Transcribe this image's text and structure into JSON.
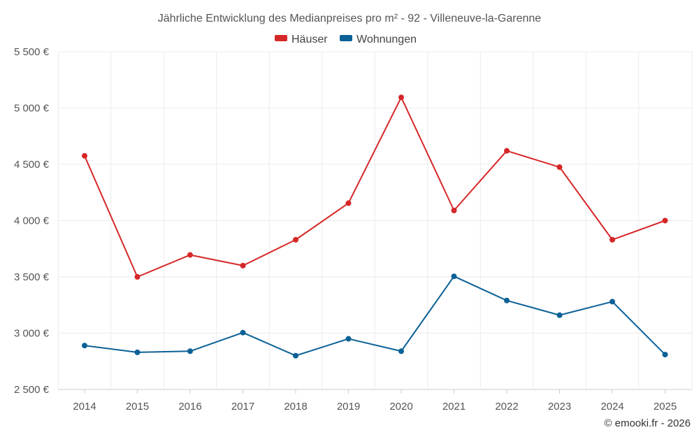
{
  "chart_data": {
    "type": "line",
    "title": "Jährliche Entwicklung des Medianpreises pro m² - 92 - Villeneuve-la-Garenne",
    "categories": [
      "2014",
      "2015",
      "2016",
      "2017",
      "2018",
      "2019",
      "2020",
      "2021",
      "2022",
      "2023",
      "2024",
      "2025"
    ],
    "series": [
      {
        "name": "Häuser",
        "color": "#d62728",
        "values": [
          4575,
          3500,
          3695,
          3600,
          3830,
          4155,
          5095,
          4090,
          4620,
          4475,
          3830,
          4000
        ]
      },
      {
        "name": "Wohnungen",
        "color": "#0b6196",
        "values": [
          2890,
          2830,
          2840,
          3005,
          2800,
          2950,
          2840,
          3505,
          3290,
          3160,
          3280,
          2810
        ]
      }
    ],
    "ylim": [
      2500,
      5500
    ],
    "yticks": [
      2500,
      3000,
      3500,
      4000,
      4500,
      5000,
      5500
    ],
    "ytick_labels": [
      "2 500 €",
      "3 000 €",
      "3 500 €",
      "4 000 €",
      "4 500 €",
      "5 000 €",
      "5 500 €"
    ],
    "xlabel": "",
    "ylabel": "",
    "grid": true,
    "legend_position": "top-center"
  },
  "credit": "© emooki.fr - 2026"
}
